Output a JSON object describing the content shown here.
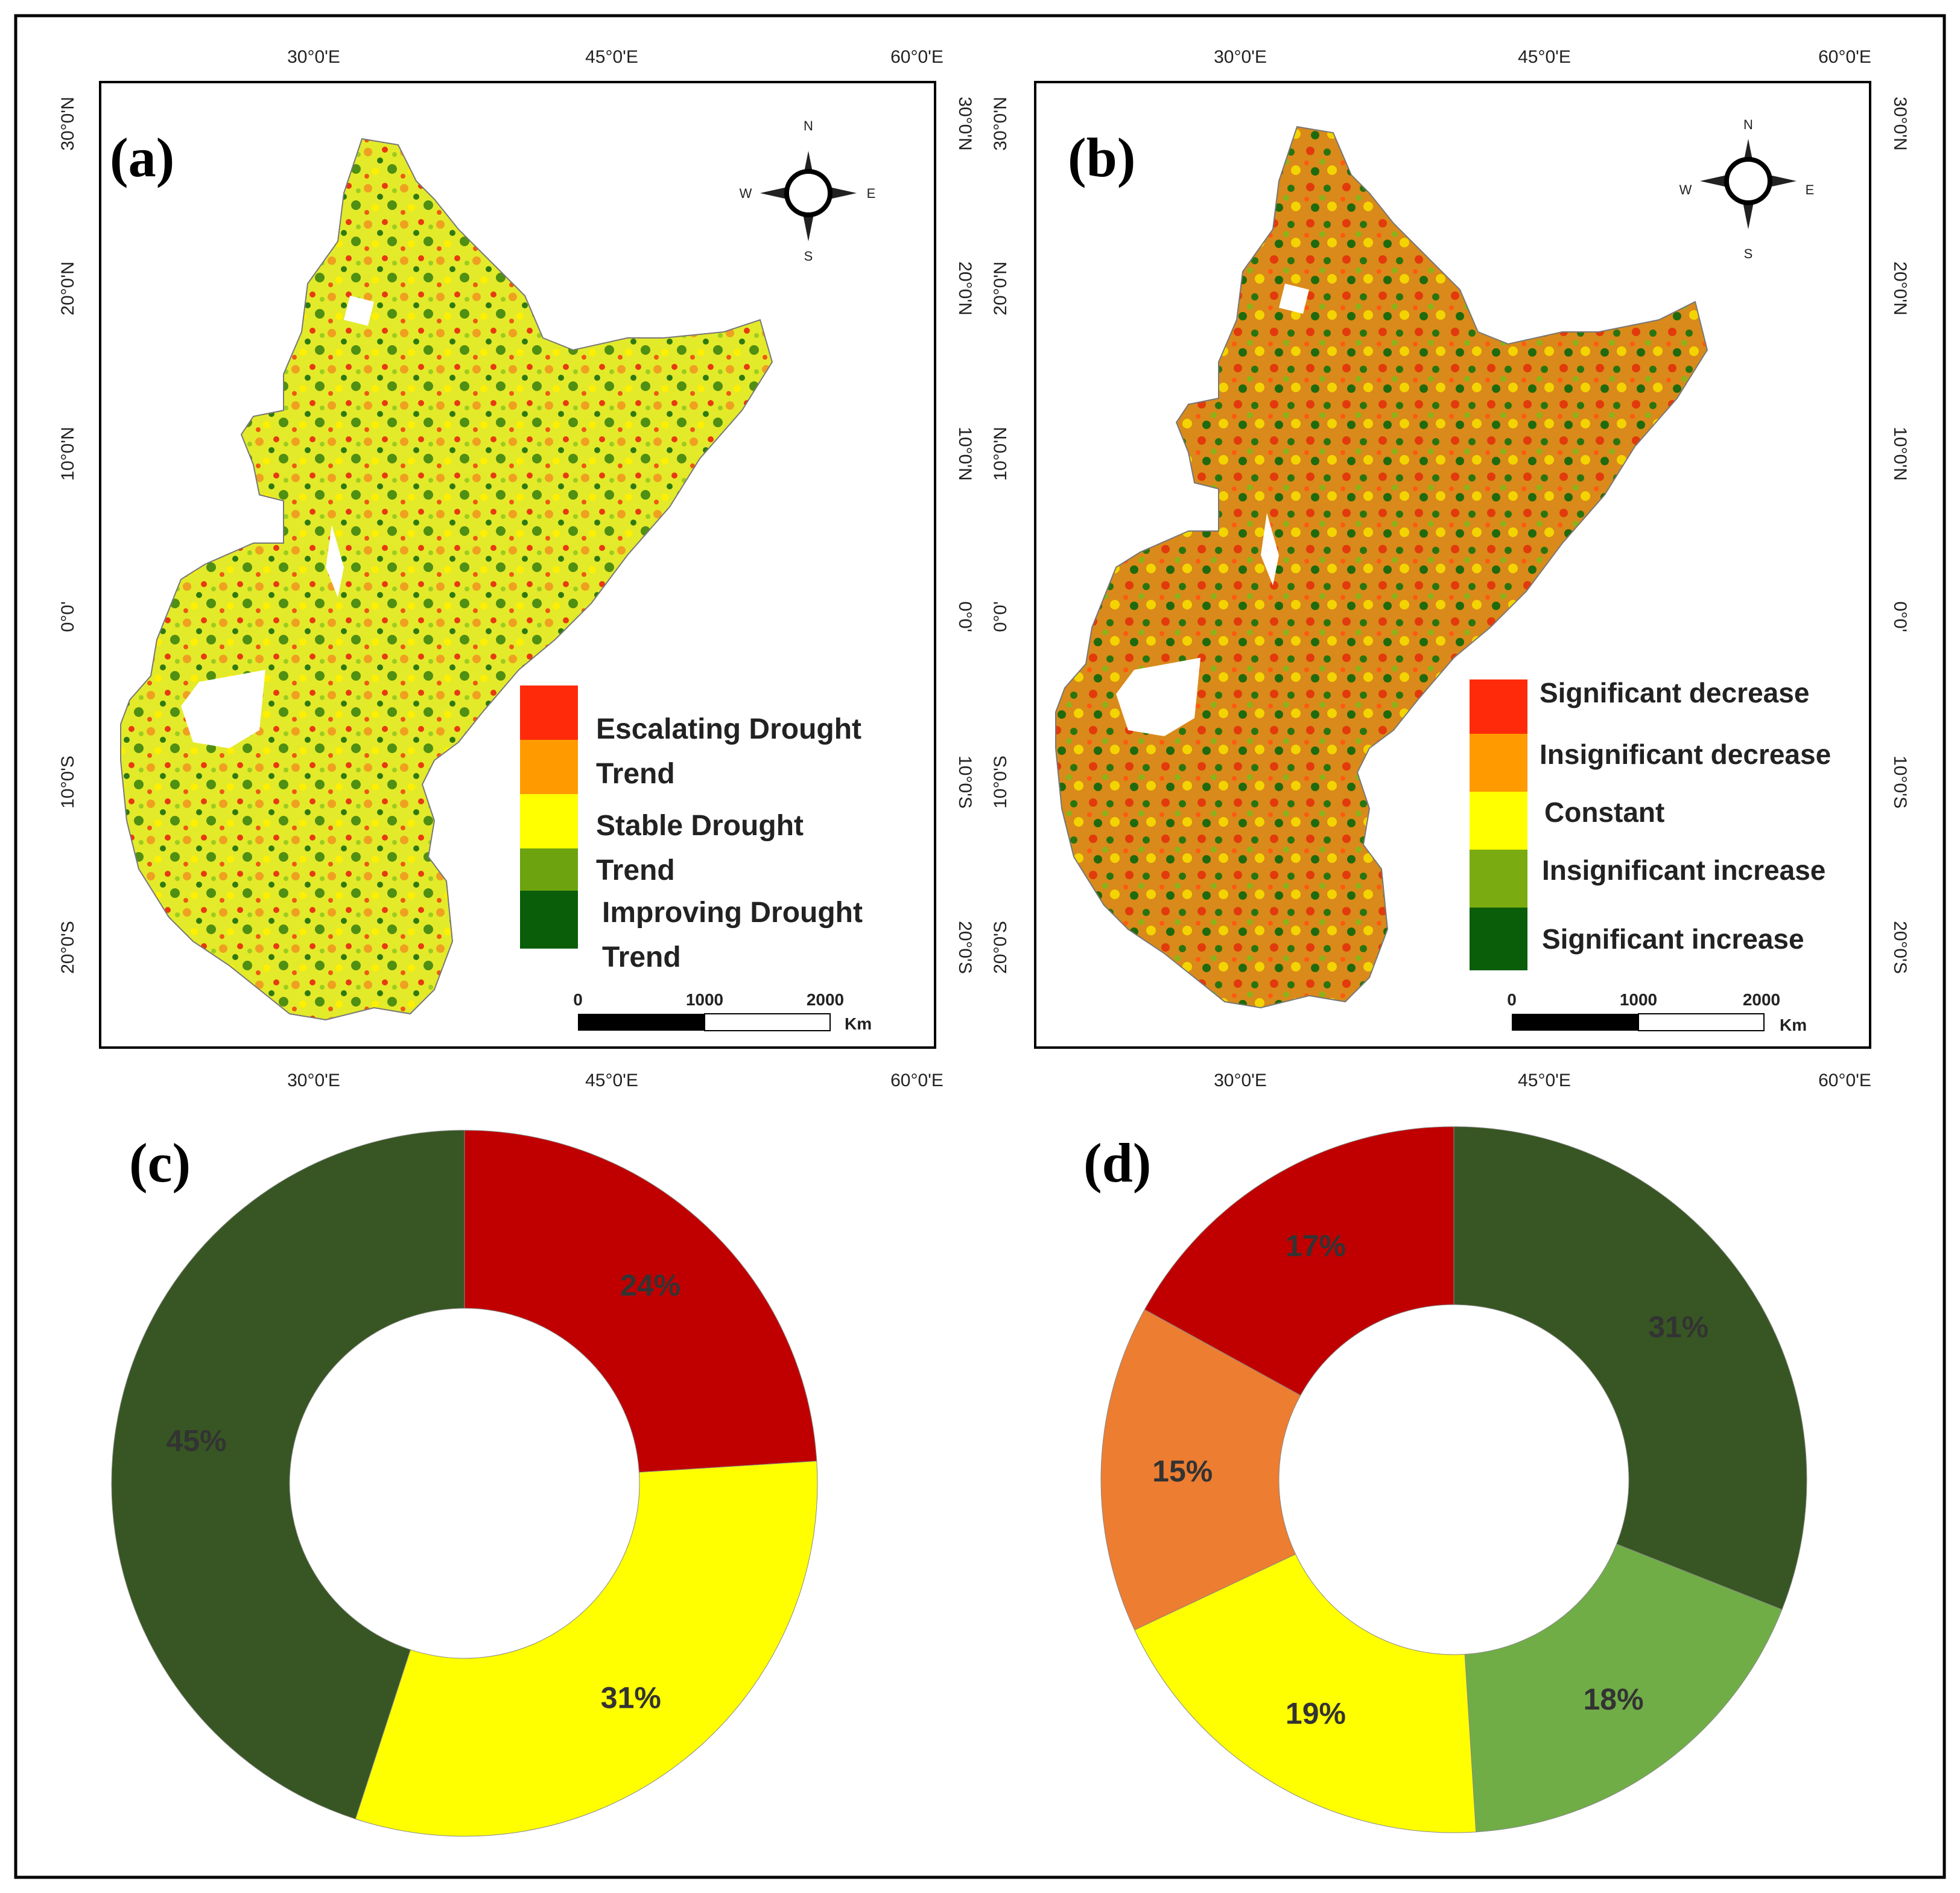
{
  "panels": {
    "a": "(a)",
    "b": "(b)",
    "c": "(c)",
    "d": "(d)"
  },
  "axis_ticks": {
    "lon": [
      "30°0'E",
      "45°0'E",
      "60°0'E"
    ],
    "lat": [
      "30°0'N",
      "20°0'N",
      "10°0'N",
      "0°0'",
      "10°0'S",
      "20°0'S"
    ]
  },
  "compass": {
    "n": "N",
    "s": "S",
    "e": "E",
    "w": "W"
  },
  "scalebar": {
    "t0": "0",
    "t1": "1000",
    "t2": "2000",
    "unit": "Km"
  },
  "legend_a": [
    {
      "label": "Escalating Drought",
      "color": "#ff2a0a"
    },
    {
      "label": "Trend",
      "color": "#ff9a00"
    },
    {
      "label": "Stable Drought",
      "color": "#ffff00"
    },
    {
      "label": "Trend",
      "color": "#6da30e"
    },
    {
      "label": "Improving Drought",
      "color": "#6da30e"
    },
    {
      "label": "Trend",
      "color": "#0a5e0a"
    }
  ],
  "legend_b": [
    {
      "label": "Significant decrease",
      "color": "#ff2a0a"
    },
    {
      "label": "Insignificant decrease",
      "color": "#ff9a00"
    },
    {
      "label": "Constant",
      "color": "#ffff00"
    },
    {
      "label": "Insignificant increase",
      "color": "#7aab10"
    },
    {
      "label": "Significant increase",
      "color": "#0a5e0a"
    }
  ],
  "chart_data": [
    {
      "panel": "c",
      "type": "pie",
      "donut": true,
      "slices": [
        {
          "label": "24%",
          "value": 24,
          "color": "#c00000"
        },
        {
          "label": "31%",
          "value": 31,
          "color": "#ffff00"
        },
        {
          "label": "45%",
          "value": 45,
          "color": "#375623"
        }
      ]
    },
    {
      "panel": "d",
      "type": "pie",
      "donut": true,
      "slices": [
        {
          "label": "31%",
          "value": 31,
          "color": "#375623"
        },
        {
          "label": "18%",
          "value": 18,
          "color": "#70ad47"
        },
        {
          "label": "19%",
          "value": 19,
          "color": "#ffff00"
        },
        {
          "label": "15%",
          "value": 15,
          "color": "#ed7d31"
        },
        {
          "label": "17%",
          "value": 17,
          "color": "#c00000"
        }
      ]
    }
  ]
}
